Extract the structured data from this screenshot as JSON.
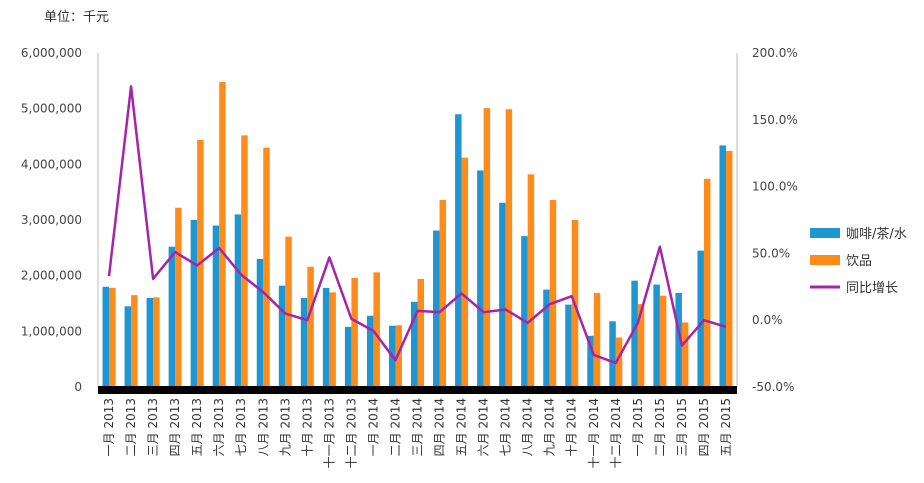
{
  "unit_label": "单位：千元",
  "chart_data": {
    "type": "bar",
    "categories": [
      "一月 2013",
      "二月 2013",
      "三月 2013",
      "四月 2013",
      "五月 2013",
      "六月 2013",
      "七月 2013",
      "八月 2013",
      "九月 2013",
      "十月 2013",
      "十一月 2013",
      "十二月 2013",
      "一月 2014",
      "二月 2014",
      "三月 2014",
      "四月 2014",
      "五月 2014",
      "六月 2014",
      "七月 2014",
      "八月 2014",
      "九月 2014",
      "十月 2014",
      "十一月 2014",
      "十二月 2014",
      "一月 2015",
      "二月 2015",
      "三月 2015",
      "四月 2015",
      "五月 2015"
    ],
    "series": [
      {
        "name": "咖啡/茶/水",
        "type": "bar",
        "axis": "left",
        "color": "#1e96d2",
        "values": [
          1800000,
          1450000,
          1600000,
          2520000,
          3000000,
          2900000,
          3100000,
          2300000,
          1820000,
          1600000,
          1780000,
          1080000,
          1280000,
          1100000,
          1530000,
          2810000,
          4900000,
          3890000,
          3310000,
          2710000,
          1750000,
          1480000,
          920000,
          1180000,
          1910000,
          1840000,
          1690000,
          2450000,
          4340000
        ]
      },
      {
        "name": "饮品",
        "type": "bar",
        "axis": "left",
        "color": "#ff8c1a",
        "values": [
          1780000,
          1650000,
          1610000,
          3220000,
          4440000,
          5480000,
          4520000,
          4300000,
          2700000,
          2160000,
          1700000,
          1960000,
          2060000,
          1110000,
          1940000,
          3360000,
          4120000,
          5010000,
          4990000,
          3820000,
          3360000,
          3000000,
          1690000,
          890000,
          1490000,
          1640000,
          1160000,
          3740000,
          4240000
        ]
      },
      {
        "name": "同比增长",
        "type": "line",
        "axis": "right",
        "color": "#a625a6",
        "values": [
          33,
          175,
          31,
          51,
          41,
          54,
          34,
          21,
          5,
          0,
          47,
          1,
          -8,
          -30,
          7,
          6,
          20,
          6,
          8,
          -2,
          12,
          18,
          -26,
          -32,
          -2,
          55,
          -19,
          0,
          -5
        ]
      }
    ],
    "ylim": [
      0,
      6000000
    ],
    "y2lim": [
      -50,
      200
    ],
    "yticks": [
      "0",
      "1,000,000",
      "2,000,000",
      "3,000,000",
      "4,000,000",
      "5,000,000",
      "6,000,000"
    ],
    "y2ticks": [
      "-50.0%",
      "0.0%",
      "50.0%",
      "100.0%",
      "150.0%",
      "200.0%"
    ],
    "grid": false,
    "legend_position": "right"
  }
}
